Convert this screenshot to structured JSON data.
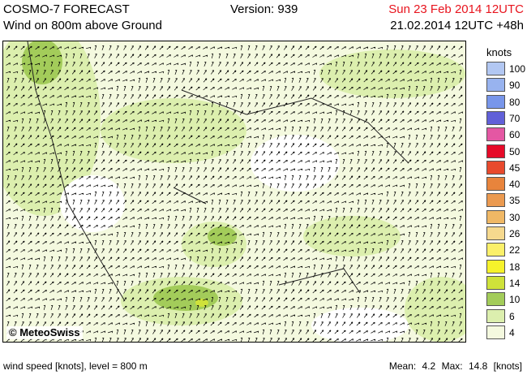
{
  "header": {
    "title": "COSMO-7 FORECAST",
    "subtitle": "Wind on 800m above Ground",
    "version": "Version: 939",
    "valid_time": "Sun 23 Feb 2014 12UTC",
    "run_time": "21.02.2014 12UTC +48h"
  },
  "map": {
    "copyright": "© MeteoSwiss"
  },
  "legend": {
    "unit": "knots",
    "levels": [
      {
        "label": "100",
        "color": "#b2c7f2"
      },
      {
        "label": "90",
        "color": "#98b3ef"
      },
      {
        "label": "80",
        "color": "#7896ea"
      },
      {
        "label": "70",
        "color": "#6160d8"
      },
      {
        "label": "60",
        "color": "#e457a3"
      },
      {
        "label": "50",
        "color": "#e60a28"
      },
      {
        "label": "45",
        "color": "#e84a2d"
      },
      {
        "label": "40",
        "color": "#e8843c"
      },
      {
        "label": "35",
        "color": "#eb9a50"
      },
      {
        "label": "30",
        "color": "#f0b865"
      },
      {
        "label": "26",
        "color": "#f6d98e"
      },
      {
        "label": "22",
        "color": "#fbf06a"
      },
      {
        "label": "18",
        "color": "#f6f22b"
      },
      {
        "label": "14",
        "color": "#cfe23a"
      },
      {
        "label": "10",
        "color": "#a3cc5a"
      },
      {
        "label": "6",
        "color": "#dcefae"
      },
      {
        "label": "4",
        "color": "#f4f9df"
      }
    ]
  },
  "footer": {
    "left": "wind speed [knots], level = 800 m",
    "mean_label": "Mean:",
    "mean_value": "4.2",
    "max_label": "Max:",
    "max_value": "14.8",
    "unit": "[knots]"
  }
}
